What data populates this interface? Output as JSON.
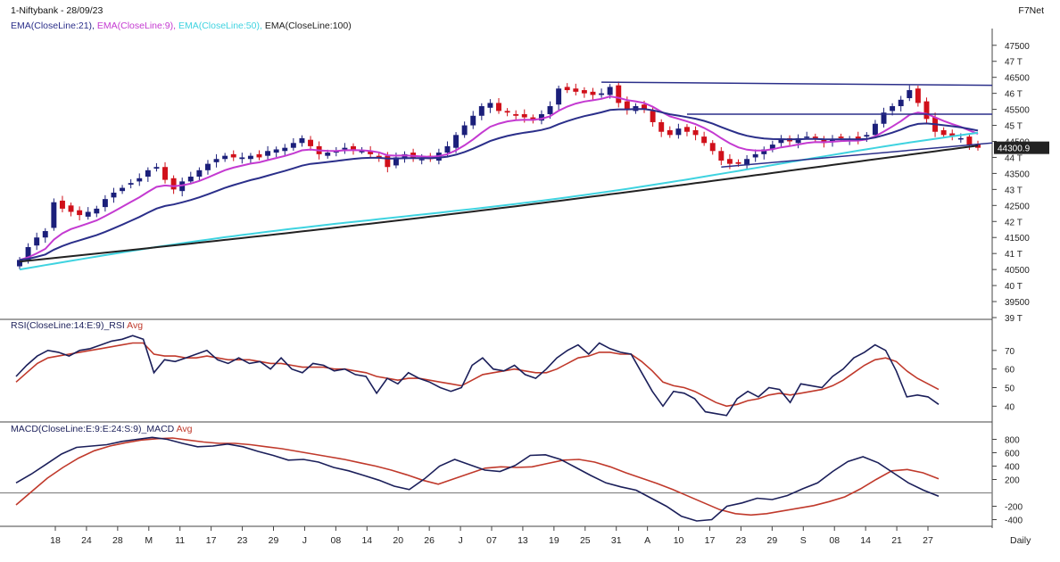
{
  "header": {
    "symbol_date": "1-Niftybank - 28/09/23",
    "brand": "F7Net",
    "ema_labels": [
      {
        "text": "EMA(CloseLine:21),",
        "color": "#2b2f8a"
      },
      {
        "text": "EMA(CloseLine:9),",
        "color": "#c43ad1"
      },
      {
        "text": "EMA(CloseLine:50),",
        "color": "#3fd3e0"
      },
      {
        "text": "EMA(CloseLine:100)",
        "color": "#222222"
      }
    ]
  },
  "colors": {
    "up": "#1b1f7a",
    "down": "#d0101a",
    "ema21": "#2b2f8a",
    "ema9": "#c43ad1",
    "ema50": "#3fd3e0",
    "ema100": "#222222",
    "trend": "#2b2f8a",
    "rsi": "#1b1f5a",
    "avg": "#c0392b",
    "grid": "#9a9a9a"
  },
  "chart_data": [
    {
      "type": "candlestick",
      "panel": "price",
      "title": "1-Niftybank - 28/09/23",
      "ylim": [
        39000,
        47800
      ],
      "y_tick_labels": [
        "47500",
        "47 T",
        "46500",
        "46 T",
        "45500",
        "45 T",
        "44500",
        "44 T",
        "43500",
        "43 T",
        "42500",
        "42 T",
        "41500",
        "41 T",
        "40500",
        "40 T",
        "39500",
        "39 T"
      ],
      "y_tick_values": [
        47500,
        47000,
        46500,
        46000,
        45500,
        45000,
        44500,
        44000,
        43500,
        43000,
        42500,
        42000,
        41500,
        41000,
        40500,
        40000,
        39500,
        39000
      ],
      "last_price_label": "44300.9",
      "last_price": 44301,
      "x_tick_labels": [
        "18",
        "24",
        "28",
        "M",
        "11",
        "17",
        "23",
        "29",
        "J",
        "08",
        "14",
        "20",
        "26",
        "J",
        "07",
        "13",
        "19",
        "25",
        "31",
        "A",
        "10",
        "17",
        "23",
        "29",
        "S",
        "08",
        "14",
        "21",
        "27"
      ],
      "x_axis_unit": "Daily",
      "closes": [
        40800,
        41200,
        41500,
        41700,
        42600,
        42400,
        42300,
        42200,
        42300,
        42400,
        42700,
        42900,
        43050,
        43200,
        43350,
        43600,
        43700,
        43300,
        43000,
        43250,
        43400,
        43600,
        43800,
        43950,
        44050,
        44000,
        44000,
        44050,
        44000,
        44200,
        44250,
        44300,
        44450,
        44600,
        44350,
        44100,
        44150,
        44200,
        44300,
        44250,
        44200,
        44100,
        44000,
        43700,
        44000,
        44100,
        44000,
        43950,
        43950,
        44150,
        44350,
        44700,
        45000,
        45300,
        45600,
        45700,
        45450,
        45400,
        45300,
        45250,
        45150,
        45350,
        45600,
        46150,
        46100,
        46050,
        46000,
        45950,
        46000,
        46200,
        45700,
        45500,
        45600,
        45500,
        45100,
        44800,
        44700,
        44900,
        44800,
        44700,
        44450,
        44200,
        43900,
        43800,
        43800,
        43950,
        44100,
        44250,
        44400,
        44550,
        44500,
        44600,
        44650,
        44600,
        44450,
        44550,
        44600,
        44550,
        44550,
        44700,
        45050,
        45400,
        45600,
        45800,
        46100,
        45700,
        45200,
        44800,
        44700,
        44650,
        44600,
        44400,
        44300
      ],
      "opens": [
        40600,
        40800,
        41250,
        41500,
        41800,
        42650,
        42500,
        42350,
        42150,
        42250,
        42450,
        42750,
        42950,
        43150,
        43250,
        43400,
        43650,
        43700,
        43350,
        42950,
        43250,
        43400,
        43600,
        43850,
        43950,
        44100,
        43950,
        43950,
        44100,
        44050,
        44150,
        44200,
        44300,
        44450,
        44550,
        44350,
        44050,
        44150,
        44250,
        44350,
        44200,
        44200,
        44050,
        44050,
        43750,
        43950,
        44150,
        43950,
        44050,
        43900,
        44150,
        44300,
        44700,
        45000,
        45300,
        45550,
        45700,
        45450,
        45350,
        45350,
        45250,
        45150,
        45350,
        45650,
        46200,
        46150,
        46100,
        46050,
        45950,
        45950,
        46250,
        45750,
        45450,
        45650,
        45450,
        45100,
        44850,
        44700,
        44950,
        44850,
        44650,
        44450,
        44200,
        43950,
        43850,
        43750,
        44000,
        44100,
        44250,
        44450,
        44600,
        44450,
        44650,
        44650,
        44550,
        44500,
        44650,
        44500,
        44650,
        44650,
        44700,
        45050,
        45450,
        45600,
        45850,
        46150,
        45750,
        45250,
        44850,
        44750,
        44600,
        44650,
        44400
      ]
    },
    {
      "type": "line",
      "panel": "rsi",
      "title": "RSI(CloseLine:14:E:9)_RSI Avg",
      "series": [
        {
          "name": "RSI(CloseLine:14:E:9)_RSI"
        },
        {
          "name": "Avg"
        }
      ],
      "y_tick_labels": [
        "70",
        "60",
        "50",
        "40"
      ],
      "y_tick_values": [
        70,
        60,
        50,
        40
      ],
      "ylim": [
        32,
        80
      ],
      "rsi": [
        56,
        62,
        67,
        70,
        69,
        67,
        70,
        71,
        73,
        75,
        76,
        78,
        76,
        58,
        65,
        64,
        66,
        68,
        70,
        65,
        63,
        66,
        63,
        64,
        60,
        66,
        60,
        58,
        63,
        62,
        59,
        60,
        57,
        56,
        47,
        55,
        52,
        58,
        55,
        53,
        50,
        48,
        50,
        62,
        66,
        60,
        59,
        62,
        57,
        55,
        60,
        66,
        70,
        73,
        68,
        74,
        71,
        69,
        68,
        58,
        48,
        40,
        48,
        47,
        44,
        37,
        36,
        35,
        44,
        48,
        45,
        50,
        49,
        42,
        52,
        51,
        50,
        56,
        60,
        66,
        69,
        73,
        70,
        59,
        45,
        46,
        45,
        41
      ],
      "avg": [
        53,
        58,
        63,
        66,
        67,
        68,
        69,
        70,
        71,
        72,
        73,
        74,
        74,
        68,
        67,
        67,
        66,
        66,
        67,
        66,
        65,
        65,
        65,
        64,
        63,
        63,
        62,
        61,
        61,
        61,
        60,
        60,
        59,
        58,
        56,
        55,
        54,
        55,
        55,
        54,
        53,
        52,
        51,
        54,
        57,
        58,
        59,
        60,
        59,
        58,
        58,
        60,
        63,
        66,
        67,
        69,
        69,
        68,
        68,
        64,
        59,
        53,
        51,
        50,
        48,
        45,
        42,
        40,
        41,
        43,
        44,
        46,
        47,
        46,
        47,
        48,
        49,
        51,
        54,
        58,
        62,
        65,
        66,
        64,
        59,
        55,
        52,
        49
      ]
    },
    {
      "type": "line",
      "panel": "macd",
      "title": "MACD(CloseLine:E:9:E:24:S:9)_MACD Avg",
      "series": [
        {
          "name": "MACD(CloseLine:E:9:E:24:S:9)_MACD"
        },
        {
          "name": "Avg"
        }
      ],
      "y_tick_labels": [
        "800",
        "600",
        "400",
        "200",
        "-200",
        "-400"
      ],
      "y_tick_values": [
        800,
        600,
        400,
        200,
        -200,
        -400
      ],
      "ylim": [
        -500,
        900
      ],
      "macd": [
        150,
        280,
        430,
        580,
        680,
        700,
        720,
        770,
        800,
        830,
        800,
        740,
        690,
        700,
        730,
        690,
        620,
        560,
        490,
        500,
        460,
        380,
        330,
        260,
        190,
        100,
        50,
        210,
        400,
        500,
        420,
        340,
        320,
        410,
        560,
        570,
        500,
        380,
        260,
        150,
        90,
        40,
        -80,
        -200,
        -350,
        -420,
        -400,
        -200,
        -150,
        -80,
        -100,
        -40,
        60,
        150,
        320,
        470,
        540,
        450,
        300,
        150,
        40,
        -50
      ],
      "avg": [
        -180,
        20,
        220,
        380,
        520,
        630,
        700,
        750,
        790,
        810,
        820,
        790,
        760,
        740,
        740,
        720,
        690,
        660,
        620,
        580,
        540,
        500,
        450,
        400,
        340,
        270,
        190,
        130,
        210,
        290,
        370,
        390,
        380,
        390,
        440,
        490,
        500,
        460,
        390,
        300,
        220,
        140,
        50,
        -50,
        -150,
        -250,
        -310,
        -330,
        -310,
        -270,
        -230,
        -190,
        -130,
        -60,
        60,
        200,
        330,
        350,
        300,
        210
      ],
      "zero_value": 0
    }
  ]
}
